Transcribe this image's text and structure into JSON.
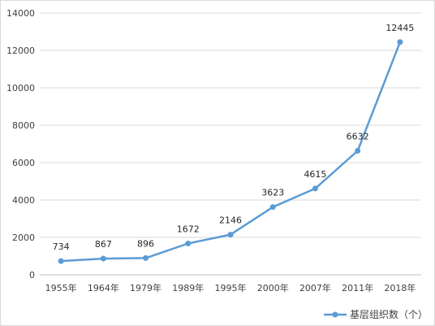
{
  "chart_data": {
    "type": "line",
    "categories": [
      "1955年",
      "1964年",
      "1979年",
      "1989年",
      "1995年",
      "2000年",
      "2007年",
      "2011年",
      "2018年"
    ],
    "series": [
      {
        "name": "基层组织数（个）",
        "values": [
          734,
          867,
          896,
          1672,
          2146,
          3623,
          4615,
          6632,
          12445
        ]
      }
    ],
    "ylim": [
      0,
      14000
    ],
    "yticks": [
      0,
      2000,
      4000,
      6000,
      8000,
      10000,
      12000,
      14000
    ],
    "grid": true,
    "legend": "bottom-right",
    "line_color": "#5b9bd5"
  }
}
